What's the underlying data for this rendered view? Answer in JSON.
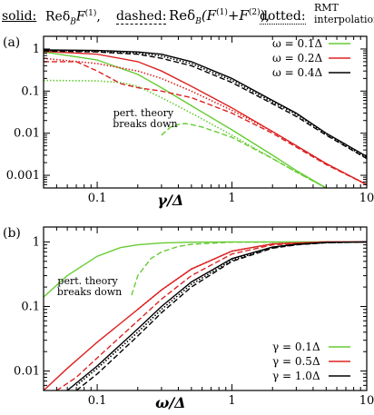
{
  "header": {
    "solid_word": "solid:",
    "solid_expr": "Reδ",
    "solid_sub": "B",
    "solid_F": "F",
    "solid_sup": "(1)",
    "sep1": ",",
    "dashed_word": "dashed:",
    "dashed_expr": "Reδ",
    "dashed_sub": "B",
    "dashed_F": "(F",
    "dashed_sup1": "(1)",
    "dashed_plus": "+F",
    "dashed_sup2": "(2)",
    "dashed_close": ")",
    "sep2": ",",
    "dotted_word": "dotted:",
    "dotted_line1": "RMT",
    "dotted_line2": "interpolation"
  },
  "chart_data": [
    {
      "type": "line",
      "panel_label": "(a)",
      "xlabel": "γ/Δ",
      "ylabel": "",
      "x_scale": "log",
      "y_scale": "log",
      "xlim": [
        0.04,
        10
      ],
      "ylim": [
        0.0005,
        2
      ],
      "x_ticks": [
        {
          "v": 0.1,
          "label": "0.1"
        },
        {
          "v": 1,
          "label": "1"
        },
        {
          "v": 10,
          "label": "10"
        }
      ],
      "y_ticks": [
        {
          "v": 1,
          "label": "1"
        },
        {
          "v": 0.1,
          "label": "0.1"
        },
        {
          "v": 0.01,
          "label": "0.01"
        },
        {
          "v": 0.001,
          "label": "0.001"
        }
      ],
      "legend_position": "top-right",
      "annotation": {
        "line1": "pert. theory",
        "line2": "breaks down"
      },
      "series": [
        {
          "name": "ω = 0.1Δ",
          "color": "#66cc33",
          "style": "solid",
          "x": [
            0.04,
            0.1,
            0.2,
            0.3,
            0.5,
            1,
            2,
            3,
            5
          ],
          "y": [
            0.85,
            0.55,
            0.25,
            0.12,
            0.045,
            0.012,
            0.003,
            0.0013,
            0.0005
          ]
        },
        {
          "name": "ω = 0.1Δ",
          "color": "#66cc33",
          "style": "dashed",
          "x": [
            0.3,
            0.35,
            0.4,
            0.45,
            0.5,
            0.6,
            1,
            2,
            3,
            5
          ],
          "y": [
            0.009,
            0.014,
            0.016,
            0.017,
            0.016,
            0.014,
            0.008,
            0.0025,
            0.0012,
            0.0005
          ]
        },
        {
          "name": "ω = 0.1Δ",
          "color": "#66cc33",
          "style": "dotted",
          "x": [
            0.04,
            0.1,
            0.15,
            0.2,
            0.3,
            0.5,
            1,
            2,
            3,
            5
          ],
          "y": [
            0.18,
            0.175,
            0.16,
            0.13,
            0.07,
            0.03,
            0.009,
            0.0025,
            0.0012,
            0.0005
          ]
        },
        {
          "name": "ω = 0.2Δ",
          "color": "#dd2222",
          "style": "solid",
          "x": [
            0.04,
            0.1,
            0.2,
            0.3,
            0.5,
            1,
            2,
            5,
            10
          ],
          "y": [
            0.88,
            0.75,
            0.5,
            0.3,
            0.13,
            0.04,
            0.011,
            0.0019,
            0.0006
          ]
        },
        {
          "name": "ω = 0.2Δ",
          "color": "#dd2222",
          "style": "dashed",
          "x": [
            0.04,
            0.07,
            0.1,
            0.15,
            0.2,
            0.3,
            0.5,
            1,
            2,
            5,
            10
          ],
          "y": [
            0.5,
            0.5,
            0.3,
            0.15,
            0.12,
            0.1,
            0.07,
            0.03,
            0.01,
            0.0018,
            0.0006
          ]
        },
        {
          "name": "ω = 0.2Δ",
          "color": "#dd2222",
          "style": "dotted",
          "x": [
            0.04,
            0.1,
            0.2,
            0.3,
            0.5,
            1,
            2,
            5,
            10
          ],
          "y": [
            0.6,
            0.45,
            0.3,
            0.2,
            0.1,
            0.035,
            0.011,
            0.0019,
            0.0006
          ]
        },
        {
          "name": "ω = 0.4Δ",
          "color": "#000000",
          "style": "solid",
          "x": [
            0.04,
            0.1,
            0.2,
            0.3,
            0.5,
            1,
            2,
            3,
            5,
            10
          ],
          "y": [
            0.95,
            0.92,
            0.85,
            0.75,
            0.5,
            0.2,
            0.06,
            0.03,
            0.01,
            0.0028
          ]
        },
        {
          "name": "ω = 0.4Δ",
          "color": "#000000",
          "style": "dashed",
          "x": [
            0.04,
            0.1,
            0.2,
            0.3,
            0.5,
            1,
            2,
            3,
            5,
            10
          ],
          "y": [
            0.9,
            0.85,
            0.75,
            0.6,
            0.4,
            0.16,
            0.05,
            0.025,
            0.009,
            0.0025
          ]
        },
        {
          "name": "ω = 0.4Δ",
          "color": "#000000",
          "style": "dotted",
          "x": [
            0.04,
            0.1,
            0.2,
            0.3,
            0.5,
            1,
            2,
            3,
            5,
            10
          ],
          "y": [
            0.93,
            0.88,
            0.8,
            0.68,
            0.45,
            0.18,
            0.055,
            0.028,
            0.0095,
            0.0026
          ]
        }
      ],
      "legend": [
        {
          "label": "ω = 0.1Δ",
          "color": "#66cc33"
        },
        {
          "label": "ω = 0.2Δ",
          "color": "#dd2222"
        },
        {
          "label": "ω = 0.4Δ",
          "color": "#000000"
        }
      ]
    },
    {
      "type": "line",
      "panel_label": "(b)",
      "xlabel": "ω/Δ",
      "ylabel": "",
      "x_scale": "log",
      "y_scale": "log",
      "xlim": [
        0.04,
        10
      ],
      "ylim": [
        0.005,
        1.7
      ],
      "x_ticks": [
        {
          "v": 0.1,
          "label": "0.1"
        },
        {
          "v": 1,
          "label": "1"
        },
        {
          "v": 10,
          "label": "10"
        }
      ],
      "y_ticks": [
        {
          "v": 1,
          "label": "1"
        },
        {
          "v": 0.1,
          "label": "0.1"
        },
        {
          "v": 0.01,
          "label": "0.01"
        }
      ],
      "legend_position": "bottom-right",
      "annotation": {
        "line1": "pert. theory",
        "line2": "breaks down"
      },
      "series": [
        {
          "name": "γ = 0.1Δ",
          "color": "#66cc33",
          "style": "solid",
          "x": [
            0.04,
            0.06,
            0.1,
            0.15,
            0.2,
            0.3,
            0.5,
            1,
            10
          ],
          "y": [
            0.14,
            0.3,
            0.6,
            0.82,
            0.9,
            0.96,
            0.99,
            1,
            1
          ]
        },
        {
          "name": "γ = 0.1Δ",
          "color": "#66cc33",
          "style": "dashed",
          "x": [
            0.18,
            0.2,
            0.25,
            0.3,
            0.4,
            0.5,
            1,
            10
          ],
          "y": [
            0.15,
            0.3,
            0.55,
            0.7,
            0.85,
            0.92,
            0.99,
            1
          ]
        },
        {
          "name": "γ = 0.5Δ",
          "color": "#dd2222",
          "style": "solid",
          "x": [
            0.04,
            0.06,
            0.1,
            0.2,
            0.3,
            0.5,
            1,
            2,
            5,
            10
          ],
          "y": [
            0.005,
            0.011,
            0.028,
            0.09,
            0.18,
            0.38,
            0.72,
            0.93,
            1,
            1
          ]
        },
        {
          "name": "γ = 0.5Δ",
          "color": "#dd2222",
          "style": "dashed",
          "x": [
            0.05,
            0.07,
            0.1,
            0.2,
            0.3,
            0.5,
            1,
            2,
            5,
            10
          ],
          "y": [
            0.005,
            0.008,
            0.016,
            0.06,
            0.13,
            0.3,
            0.65,
            0.9,
            1,
            1
          ]
        },
        {
          "name": "γ = 0.5Δ",
          "color": "#dd2222",
          "style": "dotted",
          "x": [
            0.2,
            0.3,
            0.5,
            1,
            2,
            5,
            10
          ],
          "y": [
            0.09,
            0.18,
            0.38,
            0.72,
            0.93,
            1,
            1
          ]
        },
        {
          "name": "γ = 1.0Δ",
          "color": "#000000",
          "style": "solid",
          "x": [
            0.06,
            0.1,
            0.2,
            0.3,
            0.5,
            1,
            2,
            3,
            5,
            10
          ],
          "y": [
            0.005,
            0.012,
            0.045,
            0.1,
            0.24,
            0.55,
            0.83,
            0.92,
            0.98,
            1
          ]
        },
        {
          "name": "γ = 1.0Δ",
          "color": "#000000",
          "style": "dashed",
          "x": [
            0.07,
            0.1,
            0.2,
            0.3,
            0.5,
            1,
            2,
            3,
            5,
            10
          ],
          "y": [
            0.005,
            0.009,
            0.035,
            0.08,
            0.2,
            0.5,
            0.8,
            0.9,
            0.97,
            1
          ]
        },
        {
          "name": "γ = 1.0Δ",
          "color": "#000000",
          "style": "dotted",
          "x": [
            0.07,
            0.1,
            0.2,
            0.3,
            0.5,
            1,
            2,
            3,
            5,
            10
          ],
          "y": [
            0.006,
            0.011,
            0.04,
            0.09,
            0.22,
            0.52,
            0.82,
            0.91,
            0.975,
            1
          ]
        }
      ],
      "legend": [
        {
          "label": "γ = 0.1Δ",
          "color": "#66cc33"
        },
        {
          "label": "γ = 0.5Δ",
          "color": "#dd2222"
        },
        {
          "label": "γ = 1.0Δ",
          "color": "#000000"
        }
      ]
    }
  ]
}
